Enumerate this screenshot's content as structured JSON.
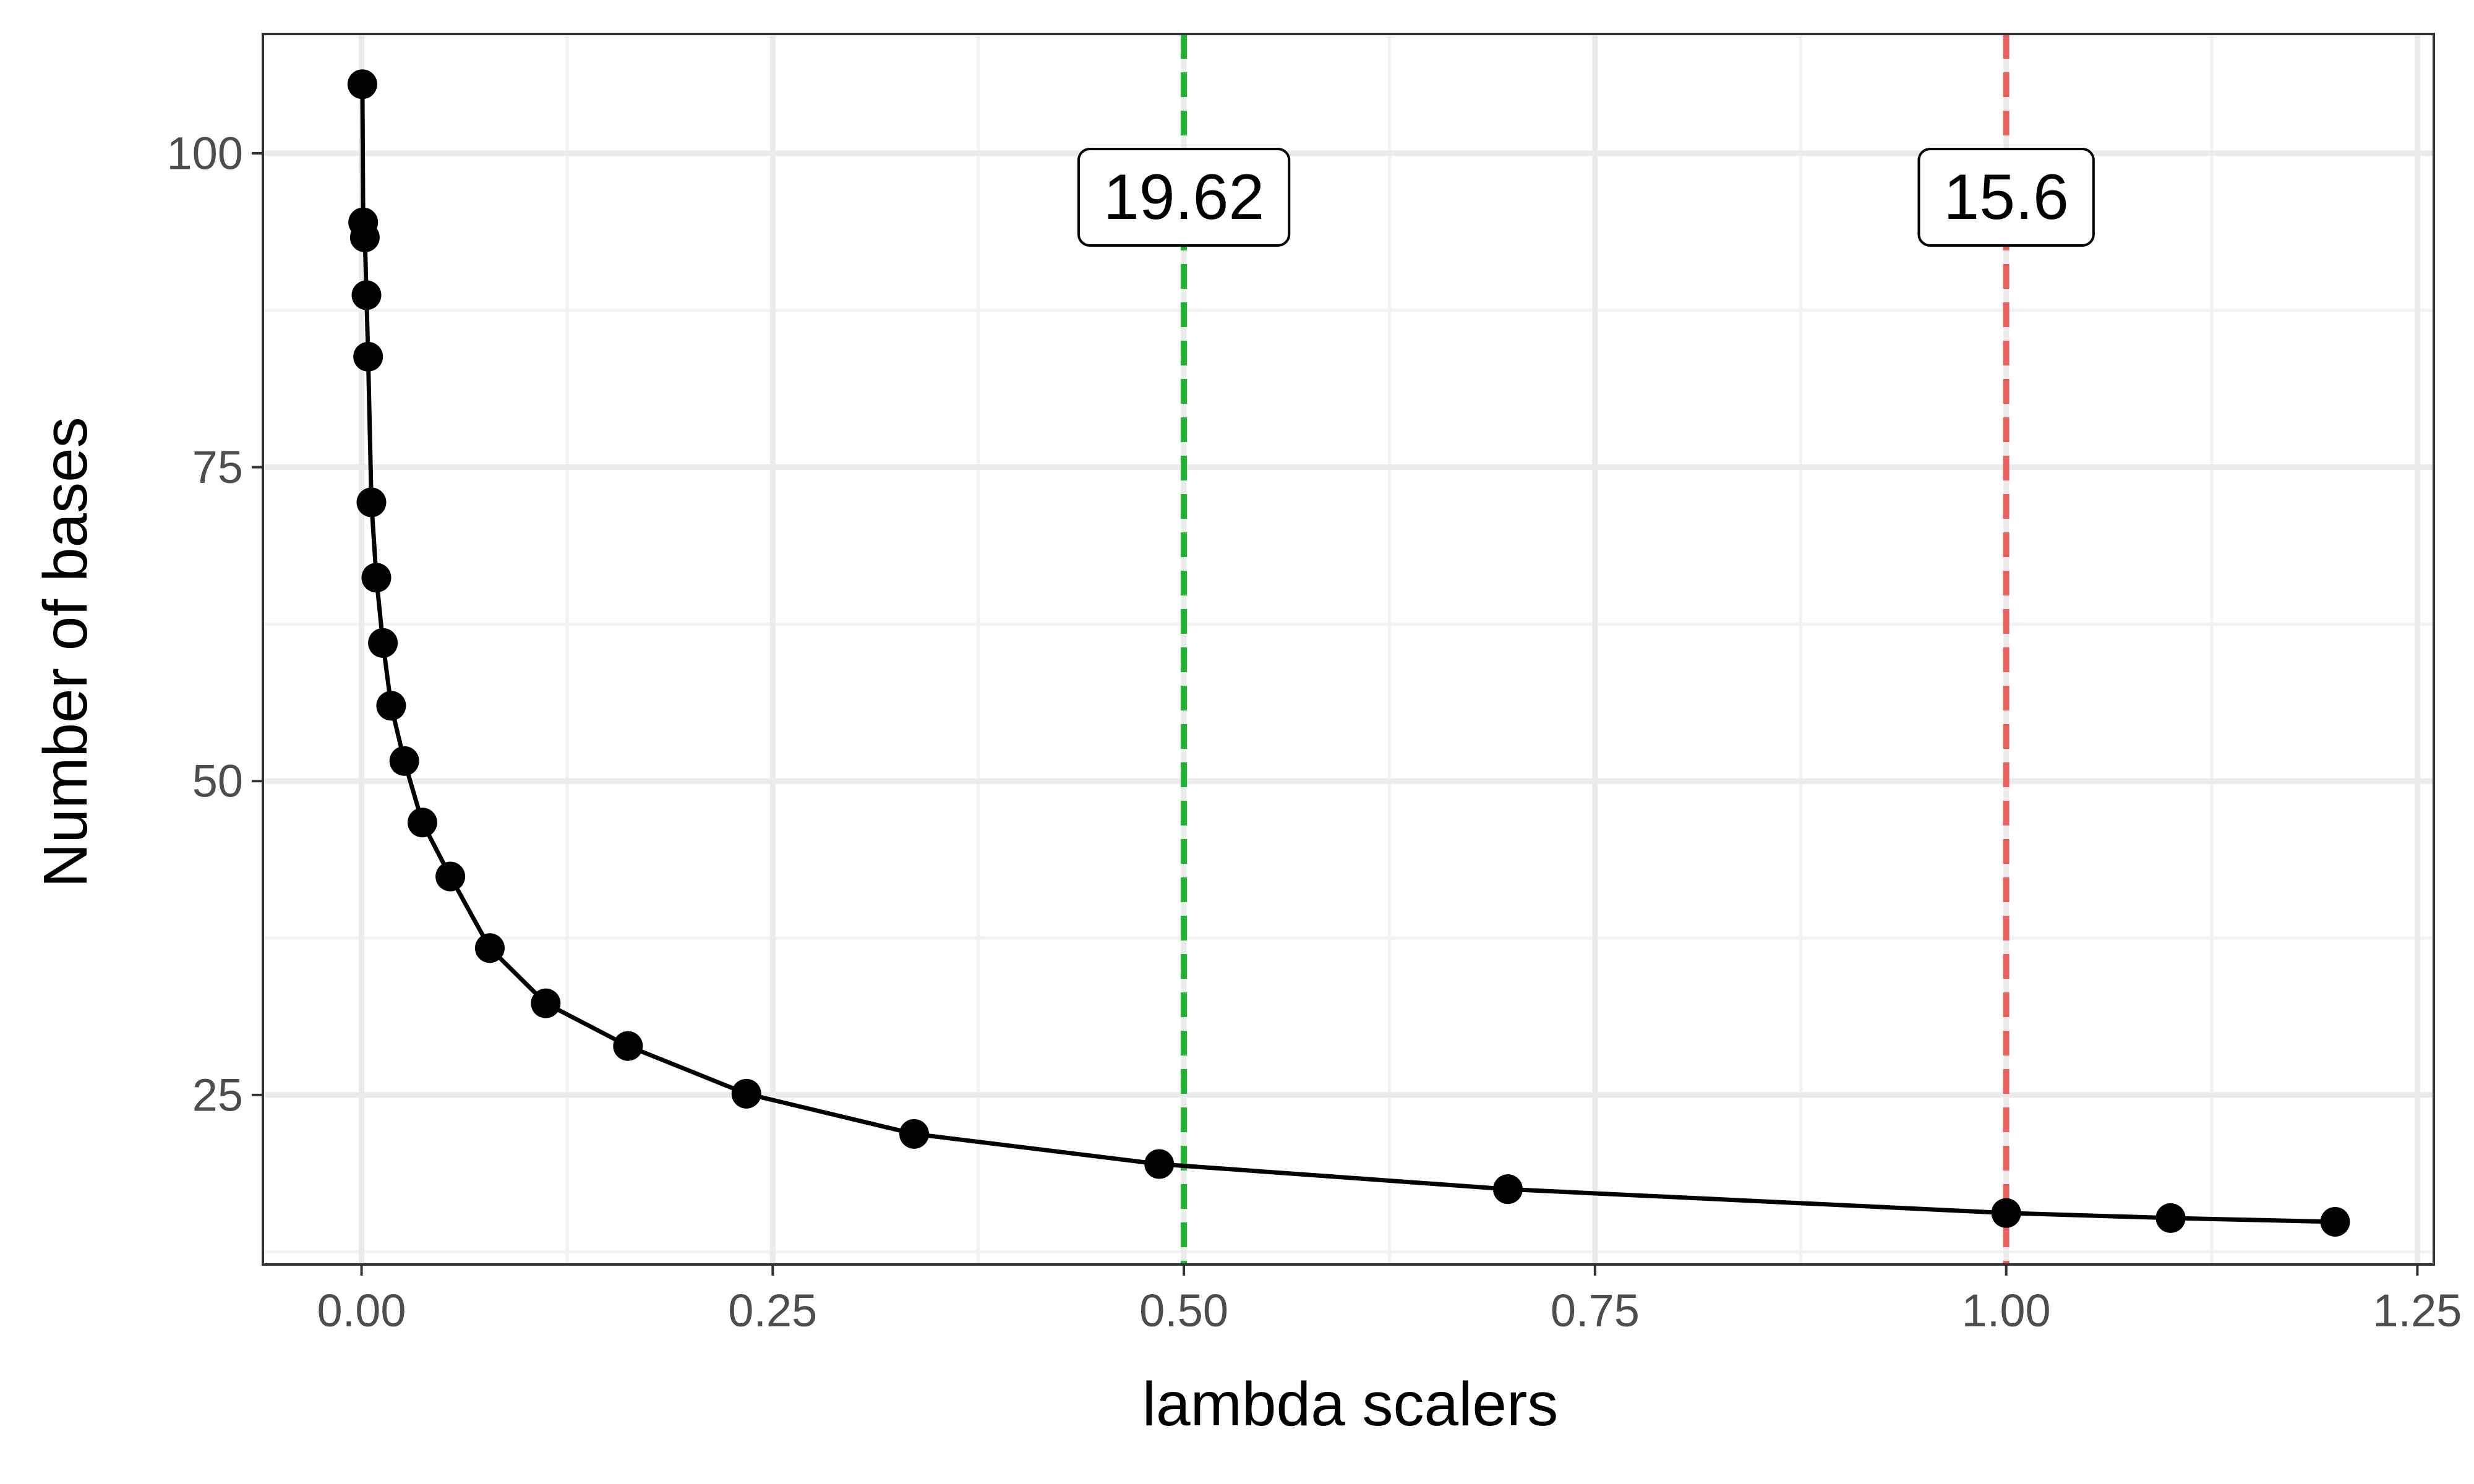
{
  "chart_data": {
    "type": "line",
    "title": "",
    "xlabel": "lambda scalers",
    "ylabel": "Number of bases",
    "xlim": [
      -0.06,
      1.26
    ],
    "ylim": [
      11.5,
      109.5
    ],
    "x_ticks": [
      0.0,
      0.25,
      0.5,
      0.75,
      1.0,
      1.25
    ],
    "x_tick_labels": [
      "0.00",
      "0.25",
      "0.50",
      "0.75",
      "1.00",
      "1.25"
    ],
    "y_ticks": [
      25,
      50,
      75,
      100
    ],
    "y_tick_labels": [
      "25",
      "50",
      "75",
      "100"
    ],
    "grid": true,
    "legend": "none",
    "series": [
      {
        "color": "#000000",
        "markers": true,
        "x": [
          0.0005,
          0.001,
          0.002,
          0.003,
          0.004,
          0.006,
          0.009,
          0.013,
          0.018,
          0.026,
          0.037,
          0.054,
          0.078,
          0.112,
          0.162,
          0.234,
          0.336,
          0.485,
          0.697,
          1.0,
          1.1,
          1.2
        ],
        "y": [
          105.5,
          94.5,
          93.3,
          88.7,
          83.8,
          72.2,
          66.2,
          61.0,
          56.0,
          51.6,
          46.7,
          42.4,
          36.7,
          32.3,
          28.9,
          25.1,
          21.9,
          19.5,
          17.5,
          15.6,
          15.2,
          14.9
        ]
      }
    ],
    "vlines": [
      {
        "x": 0.5,
        "color": "#1fb532",
        "style": "dashed",
        "label": "19.62",
        "label_y": 96.5
      },
      {
        "x": 1.0,
        "color": "#e8615c",
        "style": "dashed",
        "label": "15.6",
        "label_y": 96.5
      }
    ],
    "colors": {
      "panel_border": "#333333",
      "grid_major": "#ebebeb",
      "grid_minor": "#f2f2f2",
      "tick_text": "#4d4d4d"
    }
  }
}
